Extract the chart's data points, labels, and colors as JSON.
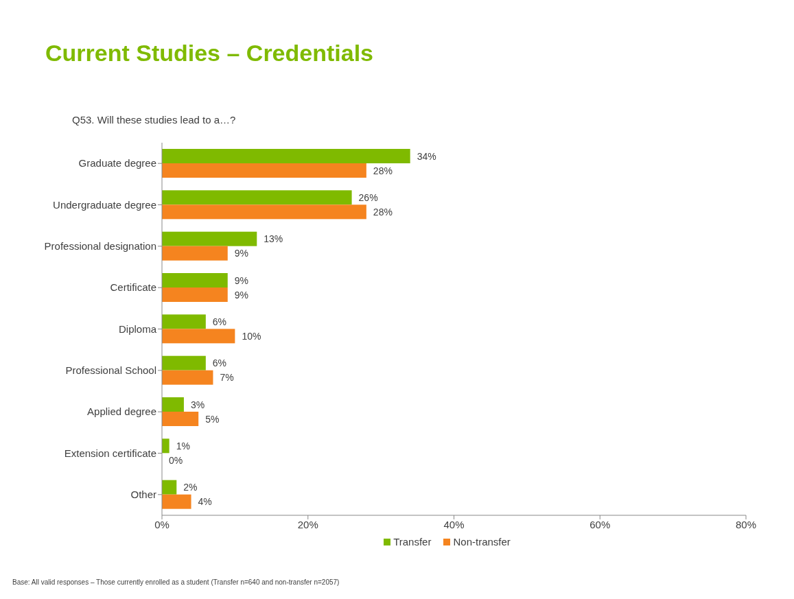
{
  "chart_data": {
    "type": "bar",
    "orientation": "horizontal",
    "title": "Current Studies – Credentials",
    "subtitle": "Q53. Will these studies lead to a…?",
    "categories": [
      "Graduate degree",
      "Undergraduate degree",
      "Professional designation",
      "Certificate",
      "Diploma",
      "Professional School",
      "Applied degree",
      "Extension certificate",
      "Other"
    ],
    "series": [
      {
        "name": "Transfer",
        "color": "#7fba00",
        "values": [
          34,
          26,
          13,
          9,
          6,
          6,
          3,
          1,
          2
        ],
        "value_labels": [
          "34%",
          "26%",
          "13%",
          "9%",
          "6%",
          "6%",
          "3%",
          "1%",
          "2%"
        ]
      },
      {
        "name": "Non-transfer",
        "color": "#f5841f",
        "values": [
          28,
          28,
          9,
          9,
          10,
          7,
          5,
          0,
          4
        ],
        "value_labels": [
          "28%",
          "28%",
          "9%",
          "9%",
          "10%",
          "7%",
          "5%",
          "0%",
          "4%"
        ]
      }
    ],
    "xlim": [
      0,
      80
    ],
    "xticks": [
      {
        "value": 0,
        "label": "0%"
      },
      {
        "value": 20,
        "label": "20%"
      },
      {
        "value": 40,
        "label": "40%"
      },
      {
        "value": 60,
        "label": "60%"
      },
      {
        "value": 80,
        "label": "80%"
      }
    ],
    "grid": false,
    "legend": "bottom",
    "annotations": [
      "Base: All valid responses – Those currently enrolled as a student (Transfer n=640 and non-transfer n=2057)"
    ]
  }
}
